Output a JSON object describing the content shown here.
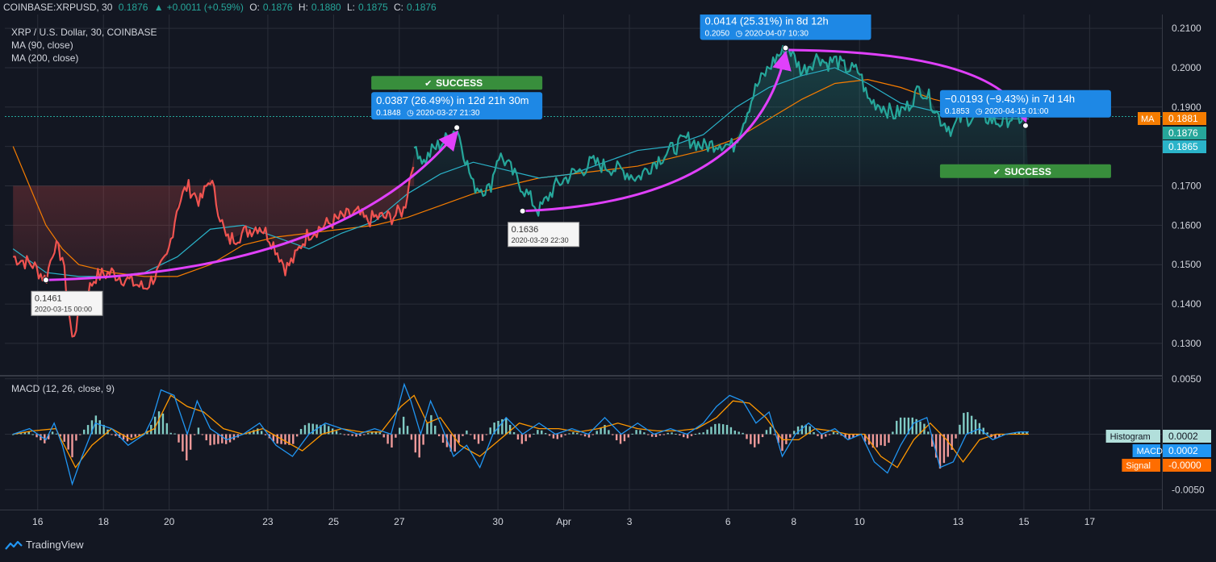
{
  "topbar": {
    "symbol": "COINBASE:XRPUSD, 30",
    "last": "0.1876",
    "change": "+0.0011 (+0.59%)",
    "o_label": "O:",
    "o": "0.1876",
    "h_label": "H:",
    "h": "0.1880",
    "l_label": "L:",
    "l": "0.1875",
    "c_label": "C:",
    "c": "0.1876"
  },
  "legend": {
    "title": "XRP / U.S. Dollar, 30, COINBASE",
    "ma90": "MA (90, close)",
    "ma200": "MA (200, close)",
    "macd": "MACD (12, 26, close, 9)"
  },
  "branding": {
    "name": "TradingView",
    "icon": "tradingview-logo-icon"
  },
  "colors": {
    "bg": "#131722",
    "grid": "#2a2e39",
    "up": "#26a69a",
    "down": "#ef5350",
    "ma90": "#2ab3c9",
    "ma200": "#f57c00",
    "arrow": "#e040fb",
    "label_blue": "#1e88e5",
    "success": "#388e3c",
    "macd": "#2196f3",
    "signal": "#ff9800"
  },
  "chart_data": {
    "type": "line",
    "price_axis": {
      "ylim": [
        0.122,
        0.2135
      ],
      "ticks": [
        "0.2100",
        "0.2000",
        "0.1900",
        "0.1800",
        "0.1700",
        "0.1600",
        "0.1500",
        "0.1400",
        "0.1300"
      ]
    },
    "macd_axis": {
      "ylim": [
        -0.0068,
        0.0052
      ],
      "ticks": [
        "0.0050",
        "0.0000",
        "-0.0050"
      ]
    },
    "x_axis": {
      "labels": [
        "16",
        "18",
        "20",
        "23",
        "25",
        "27",
        "30",
        "Apr",
        "3",
        "6",
        "8",
        "10",
        "13",
        "15",
        "17"
      ],
      "label_index": [
        0.75,
        2.75,
        4.75,
        7.75,
        9.75,
        11.75,
        14.75,
        16.75,
        18.75,
        21.75,
        23.75,
        25.75,
        28.75,
        30.75,
        32.75
      ],
      "xlim": [
        -0.25,
        34.95
      ]
    },
    "price_series": {
      "name": "XRP/USD",
      "x": [
        0,
        0.6,
        1.0,
        1.25,
        1.5,
        1.8,
        2.1,
        2.5,
        3.0,
        3.5,
        4.0,
        4.5,
        4.7,
        5.0,
        5.3,
        5.7,
        6.0,
        6.5,
        7.0,
        7.5,
        7.8,
        8.0,
        8.3,
        8.6,
        8.75,
        9.0,
        9.5,
        10.0,
        10.5,
        10.75,
        11.0,
        11.5,
        11.9,
        12.25,
        12.5,
        12.75,
        13.2,
        13.5,
        14.0,
        14.5,
        14.75,
        15.0,
        15.3,
        16.0,
        16.5,
        17.0,
        17.3,
        17.6,
        18.0,
        18.5,
        19.0,
        19.5,
        20.0,
        20.5,
        21.0,
        21.5,
        21.9,
        22.2,
        22.6,
        23.0,
        23.25,
        23.6,
        24.0,
        24.5,
        24.75,
        25.0,
        25.3,
        25.75,
        26.0,
        26.5,
        26.8,
        27.2,
        27.6,
        27.9,
        28.2,
        28.6,
        28.75,
        29.0,
        29.3,
        29.7,
        30.0,
        30.4,
        30.7,
        30.9
      ],
      "y": [
        0.152,
        0.15,
        0.1461,
        0.155,
        0.152,
        0.131,
        0.14,
        0.147,
        0.148,
        0.146,
        0.144,
        0.149,
        0.152,
        0.165,
        0.17,
        0.166,
        0.172,
        0.156,
        0.158,
        0.16,
        0.157,
        0.154,
        0.149,
        0.152,
        0.155,
        0.158,
        0.16,
        0.162,
        0.163,
        0.161,
        0.162,
        0.162,
        0.164,
        0.18,
        0.176,
        0.179,
        0.182,
        0.1848,
        0.17,
        0.169,
        0.178,
        0.176,
        0.172,
        0.1636,
        0.17,
        0.173,
        0.174,
        0.176,
        0.175,
        0.174,
        0.172,
        0.176,
        0.179,
        0.182,
        0.18,
        0.181,
        0.18,
        0.186,
        0.195,
        0.2,
        0.203,
        0.205,
        0.199,
        0.203,
        0.201,
        0.202,
        0.2,
        0.199,
        0.192,
        0.19,
        0.188,
        0.19,
        0.195,
        0.192,
        0.187,
        0.184,
        0.187,
        0.187,
        0.188,
        0.187,
        0.186,
        0.1875,
        0.187,
        0.1876
      ]
    },
    "ma90": {
      "name": "MA (90, close)",
      "x": [
        0,
        1,
        2,
        3,
        4,
        5,
        6,
        7,
        8,
        9,
        10,
        11,
        12,
        13,
        14,
        15,
        16,
        17,
        18,
        19,
        20,
        21,
        22,
        23,
        24,
        25,
        26,
        27,
        28,
        29,
        30,
        30.9
      ],
      "y": [
        0.154,
        0.148,
        0.147,
        0.147,
        0.148,
        0.152,
        0.159,
        0.16,
        0.157,
        0.154,
        0.158,
        0.161,
        0.168,
        0.173,
        0.176,
        0.174,
        0.172,
        0.173,
        0.176,
        0.179,
        0.18,
        0.183,
        0.19,
        0.195,
        0.198,
        0.2,
        0.196,
        0.191,
        0.189,
        0.188,
        0.187,
        0.187
      ]
    },
    "ma200": {
      "name": "MA (200, close)",
      "x": [
        0,
        0.5,
        1,
        1.5,
        2,
        2.5,
        3,
        4,
        5,
        6,
        7,
        8,
        9,
        10,
        11,
        12,
        13,
        14,
        15,
        16,
        17,
        18,
        19,
        20,
        21,
        22,
        23,
        24,
        25,
        26,
        27,
        28,
        29,
        30,
        30.9
      ],
      "y": [
        0.18,
        0.17,
        0.16,
        0.154,
        0.15,
        0.149,
        0.148,
        0.147,
        0.147,
        0.15,
        0.155,
        0.157,
        0.158,
        0.159,
        0.16,
        0.162,
        0.165,
        0.168,
        0.17,
        0.172,
        0.173,
        0.174,
        0.175,
        0.177,
        0.179,
        0.182,
        0.187,
        0.192,
        0.196,
        0.197,
        0.195,
        0.192,
        0.19,
        0.188,
        0.1881
      ]
    },
    "macd_line": {
      "name": "MACD",
      "x": [
        0,
        0.5,
        1,
        1.25,
        1.5,
        1.8,
        2.1,
        2.5,
        3,
        3.5,
        4,
        4.25,
        4.5,
        4.9,
        5.3,
        5.6,
        6,
        6.5,
        7,
        7.5,
        8,
        8.5,
        9,
        9.5,
        10,
        10.5,
        11,
        11.5,
        11.9,
        12.1,
        12.4,
        12.7,
        13,
        13.4,
        13.8,
        14.2,
        14.6,
        15,
        15.5,
        16,
        16.5,
        17,
        17.5,
        18,
        18.5,
        19,
        19.5,
        20,
        20.5,
        21,
        21.4,
        21.8,
        22.2,
        22.6,
        23,
        23.4,
        23.8,
        24.2,
        24.6,
        25,
        25.4,
        25.8,
        26.2,
        26.6,
        27,
        27.4,
        27.8,
        28.2,
        28.6,
        29,
        29.4,
        29.8,
        30.2,
        30.6,
        30.9
      ],
      "y": [
        0.0,
        0.0005,
        -0.0005,
        0.001,
        -0.001,
        -0.0045,
        -0.002,
        0.001,
        0.0005,
        -0.001,
        0.0,
        0.0015,
        0.004,
        0.0035,
        0.0,
        0.003,
        0.0005,
        -0.0005,
        0.0,
        0.001,
        -0.001,
        -0.002,
        0.0,
        0.001,
        0.0005,
        0.0,
        0.0005,
        0.0,
        0.0045,
        0.003,
        0.0,
        0.003,
        0.001,
        -0.002,
        -0.001,
        -0.003,
        0.0,
        0.0015,
        0.0,
        0.001,
        0.0,
        0.0005,
        0.0,
        0.0015,
        0.0,
        0.001,
        0.0,
        0.0005,
        0.0,
        0.001,
        0.0025,
        0.0035,
        0.003,
        0.001,
        0.002,
        -0.002,
        0.0,
        0.001,
        0.0,
        0.0005,
        -0.0005,
        0.0,
        -0.0025,
        -0.0035,
        -0.001,
        0.001,
        0.0015,
        -0.003,
        -0.0025,
        0.0,
        0.0005,
        -0.0005,
        0.0,
        0.0002,
        0.0002
      ]
    },
    "signal_line": {
      "name": "Signal",
      "x": [
        0,
        0.6,
        1.3,
        1.9,
        2.4,
        3,
        3.6,
        4.3,
        4.8,
        5.3,
        5.8,
        6.4,
        7,
        7.6,
        8.2,
        8.8,
        9.4,
        10,
        10.6,
        11.2,
        11.8,
        12.2,
        12.6,
        13,
        13.6,
        14.2,
        14.8,
        15.4,
        16,
        16.6,
        17.2,
        17.8,
        18.4,
        19,
        19.6,
        20.2,
        20.8,
        21.4,
        21.9,
        22.4,
        22.9,
        23.4,
        23.9,
        24.4,
        24.9,
        25.4,
        25.9,
        26.4,
        26.9,
        27.4,
        27.9,
        28.4,
        28.9,
        29.4,
        29.9,
        30.4,
        30.9
      ],
      "y": [
        0.0,
        0.0003,
        0.0005,
        -0.003,
        -0.001,
        0.0005,
        -0.0005,
        0.0005,
        0.0035,
        0.0025,
        0.002,
        0.0005,
        0.0,
        0.0005,
        -0.0005,
        -0.0015,
        0.0,
        0.0005,
        0.0002,
        0.0002,
        0.0025,
        0.0035,
        0.001,
        0.0015,
        -0.001,
        -0.002,
        -0.0005,
        0.001,
        0.0005,
        0.0005,
        0.0002,
        0.0005,
        0.001,
        0.0005,
        0.0003,
        0.0003,
        0.0005,
        0.0015,
        0.003,
        0.0028,
        0.0015,
        -0.0005,
        -0.0005,
        0.0005,
        0.0003,
        0.0,
        0.0,
        -0.002,
        -0.003,
        -0.0005,
        0.001,
        -0.0005,
        -0.0025,
        -0.0005,
        0.0,
        0.0,
        -0.0
      ]
    },
    "markers": [
      {
        "x": 1.0,
        "y": 0.1461,
        "price": "0.1461",
        "time": "2020-03-15 00:00"
      },
      {
        "x": 13.5,
        "y": 0.1848
      },
      {
        "x": 15.5,
        "y": 0.1636,
        "price": "0.1636",
        "time": "2020-03-29 22:30"
      },
      {
        "x": 23.5,
        "y": 0.205
      },
      {
        "x": 30.8,
        "y": 0.1853
      }
    ],
    "arrows": [
      {
        "from": [
          1.0,
          0.1461
        ],
        "ctrl": [
          10,
          0.148
        ],
        "to": [
          13.5,
          0.1848
        ]
      },
      {
        "from": [
          15.5,
          0.1636
        ],
        "ctrl": [
          22.5,
          0.166
        ],
        "to": [
          23.5,
          0.205
        ]
      },
      {
        "from": [
          23.6,
          0.2045
        ],
        "ctrl": [
          30.0,
          0.204
        ],
        "to": [
          30.8,
          0.1853
        ]
      }
    ],
    "callouts": [
      {
        "x": 13.5,
        "y": 0.1848,
        "line1": "0.0387 (26.49%) in 12d 21h 30m",
        "line2_price": "0.1848",
        "line2_time": "2020-03-27  21:30",
        "success": "SUCCESS",
        "success_pos": "above"
      },
      {
        "x": 23.5,
        "y": 0.205,
        "line1": "0.0414 (25.31%) in 8d 12h",
        "line2_price": "0.2050",
        "line2_time": "2020-04-07  10:30"
      },
      {
        "x": 30.8,
        "y": 0.1853,
        "line1": "−0.0193 (−9.43%) in 7d 14h",
        "line2_price": "0.1853",
        "line2_time": "2020-04-15  01:00",
        "success": "SUCCESS",
        "success_pos": "below"
      }
    ],
    "price_labels": [
      {
        "text": "0.1881",
        "tag": "MA",
        "value": 0.1881,
        "color": "#f57c00"
      },
      {
        "text": "0.1876",
        "value": 0.1876,
        "color": "#26a69a"
      },
      {
        "text": "0.1865",
        "value": 0.1865,
        "color": "#2ab3c9"
      }
    ],
    "macd_labels": [
      {
        "tag": "Histogram",
        "text": "0.0002",
        "color": "#b2dfdb",
        "text_color": "#131722"
      },
      {
        "tag": "MACD",
        "text": "0.0002",
        "color": "#2196f3",
        "text_color": "#ffffff"
      },
      {
        "tag": "Signal",
        "text": "-0.0000",
        "color": "#ff6d00",
        "text_color": "#ffffff"
      }
    ]
  }
}
